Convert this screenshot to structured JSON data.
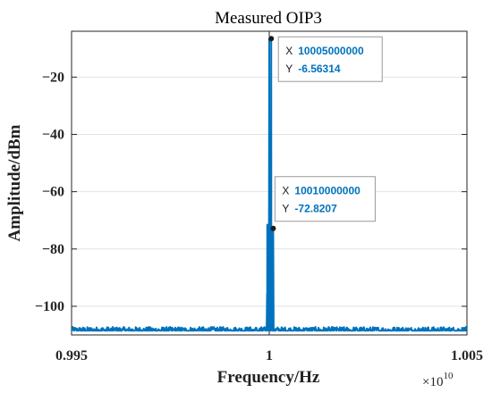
{
  "chart_data": {
    "type": "line",
    "title": "Measured OIP3",
    "xlabel": "Frequency/Hz",
    "ylabel": "Amplitude/dBm",
    "x_exponent": "×10",
    "x_exponent_power": "10",
    "xlim": [
      0.995,
      1.005
    ],
    "ylim": [
      -110,
      -4
    ],
    "xticks": [
      0.995,
      1,
      1.005
    ],
    "xtick_labels": [
      "0.995",
      "1",
      "1.005"
    ],
    "yticks": [
      -100,
      -80,
      -60,
      -40,
      -20
    ],
    "ytick_labels": [
      "−100",
      "−80",
      "−60",
      "−40",
      "−20"
    ],
    "grid": true,
    "line_color": "#0072BD",
    "noise_floor": -108.5,
    "series": [
      {
        "peaks": [
          {
            "x": 0.99995,
            "y": -71.5
          },
          {
            "x": 1.0,
            "y": -6.5
          },
          {
            "x": 1.00005,
            "y": -6.56314
          },
          {
            "x": 1.0001,
            "y": -72.8207
          }
        ]
      }
    ],
    "datatips": [
      {
        "x_label": "X",
        "x_value": "10005000000",
        "y_label": "Y",
        "y_value": "-6.56314",
        "px": 1.00005,
        "py": -6.56314
      },
      {
        "x_label": "X",
        "x_value": "10010000000",
        "y_label": "Y",
        "y_value": "-72.8207",
        "px": 1.0001,
        "py": -72.8207
      }
    ]
  }
}
